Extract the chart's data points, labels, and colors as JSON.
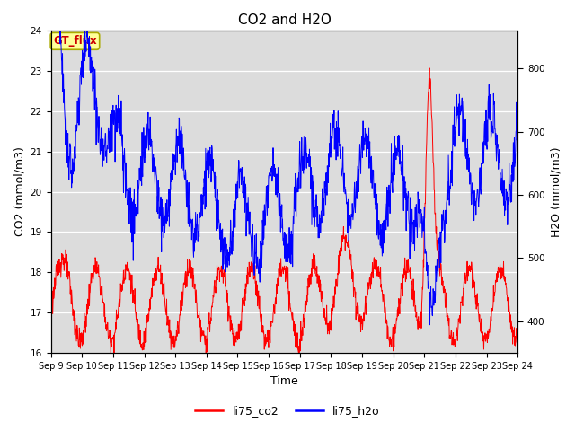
{
  "title": "CO2 and H2O",
  "xlabel": "Time",
  "ylabel_left": "CO2 (mmol/m3)",
  "ylabel_right": "H2O (mmol/m3)",
  "ylim_left": [
    16.0,
    24.0
  ],
  "ylim_right": [
    350,
    860
  ],
  "xtick_labels": [
    "Sep 9",
    "Sep 10",
    "Sep 11",
    "Sep 12",
    "Sep 13",
    "Sep 14",
    "Sep 15",
    "Sep 16",
    "Sep 17",
    "Sep 18",
    "Sep 19",
    "Sep 20",
    "Sep 21",
    "Sep 22",
    "Sep 23",
    "Sep 24"
  ],
  "legend_labels": [
    "li75_co2",
    "li75_h2o"
  ],
  "co2_color": "#FF0000",
  "h2o_color": "#0000FF",
  "background_color": "#DCDCDC",
  "annotation_text": "GT_flux",
  "annotation_color": "#CC0000",
  "annotation_bg": "#FFFF99",
  "title_fontsize": 11,
  "axis_fontsize": 9,
  "tick_fontsize": 7.5
}
